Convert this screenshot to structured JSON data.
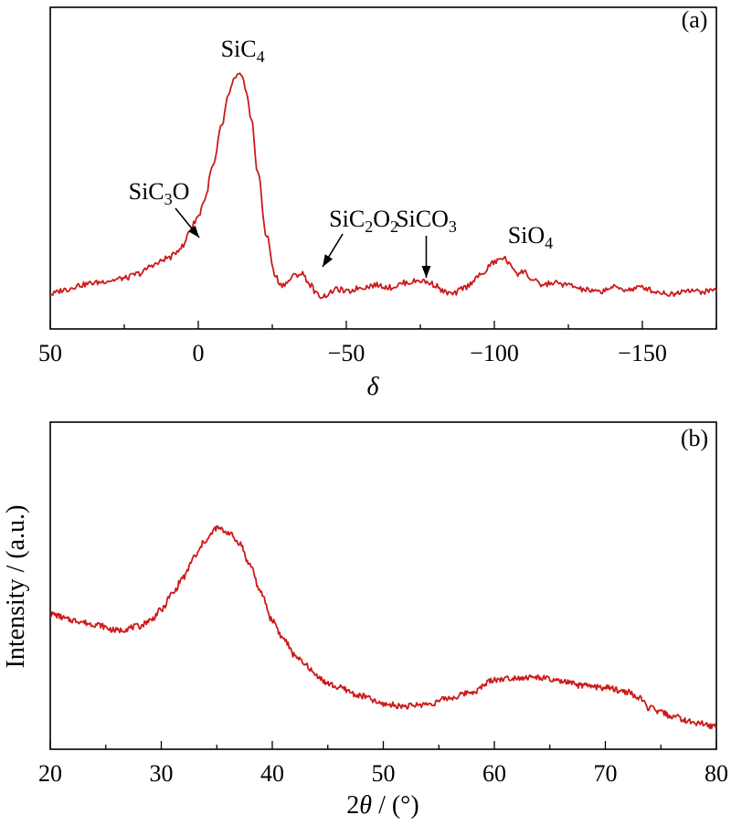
{
  "chart_data": [
    {
      "panel": "(a)",
      "type": "line",
      "xlabel": "δ",
      "ylabel": "",
      "xlim": [
        50,
        -175
      ],
      "x_ticks": [
        50,
        0,
        -50,
        -100,
        -150
      ],
      "x_tick_labels": [
        "50",
        "0",
        "−50",
        "−100",
        "−150"
      ],
      "grid": false,
      "series": [
        {
          "x": [
            50,
            45,
            40,
            35,
            30,
            25,
            20,
            15,
            10,
            5,
            3,
            0,
            -2,
            -5,
            -8,
            -10,
            -12,
            -14,
            -15,
            -16,
            -18,
            -20,
            -23,
            -26,
            -28,
            -30,
            -32,
            -35,
            -38,
            -40,
            -42,
            -44,
            -46,
            -48,
            -50,
            -55,
            -60,
            -65,
            -70,
            -75,
            -78,
            -80,
            -83,
            -86,
            -90,
            -95,
            -100,
            -103,
            -106,
            -108,
            -110,
            -113,
            -116,
            -120,
            -125,
            -130,
            -135,
            -140,
            -145,
            -150,
            -155,
            -160,
            -165,
            -170,
            -175
          ],
          "y": [
            0.04,
            0.06,
            0.08,
            0.09,
            0.1,
            0.11,
            0.13,
            0.17,
            0.2,
            0.25,
            0.32,
            0.38,
            0.45,
            0.6,
            0.78,
            0.9,
            0.98,
            1.0,
            0.98,
            0.94,
            0.8,
            0.58,
            0.3,
            0.12,
            0.08,
            0.09,
            0.12,
            0.13,
            0.08,
            0.04,
            0.03,
            0.04,
            0.06,
            0.06,
            0.05,
            0.07,
            0.08,
            0.07,
            0.09,
            0.1,
            0.09,
            0.08,
            0.05,
            0.04,
            0.07,
            0.12,
            0.18,
            0.2,
            0.16,
            0.13,
            0.14,
            0.1,
            0.08,
            0.09,
            0.08,
            0.06,
            0.05,
            0.07,
            0.06,
            0.07,
            0.05,
            0.04,
            0.06,
            0.05,
            0.06
          ]
        }
      ],
      "annotations": [
        {
          "id": "sic4",
          "text": "SiC",
          "sub": "4",
          "x": -15,
          "arrow": false
        },
        {
          "id": "sic3o",
          "text": "SiC",
          "sub": "3",
          "tail": "O",
          "x": 4,
          "arrow": true
        },
        {
          "id": "sic2o2",
          "text": "SiC",
          "sub": "2",
          "tail": "O",
          "sub2": "2",
          "x": -42,
          "arrow": true
        },
        {
          "id": "sico3",
          "text": "SiCO",
          "sub": "3",
          "x": -77,
          "arrow": true
        },
        {
          "id": "sio4",
          "text": "SiO",
          "sub": "4",
          "x": -106,
          "arrow": false
        }
      ]
    },
    {
      "panel": "(b)",
      "type": "line",
      "xlabel": "2θ / (°)",
      "xlabel_parts": [
        "2",
        "θ",
        " / (°)"
      ],
      "ylabel": "Intensity / (a.u.)",
      "xlim": [
        20,
        80
      ],
      "x_ticks": [
        20,
        30,
        40,
        50,
        60,
        70,
        80
      ],
      "x_tick_labels": [
        "20",
        "30",
        "40",
        "50",
        "60",
        "70",
        "80"
      ],
      "grid": false,
      "series": [
        {
          "x": [
            20,
            22,
            24,
            26,
            28,
            29,
            30,
            31,
            32,
            33,
            34,
            35,
            36,
            37,
            38,
            39,
            40,
            41,
            42,
            43,
            44,
            45,
            46,
            48,
            50,
            52,
            54,
            56,
            58,
            60,
            62,
            64,
            66,
            68,
            70,
            72,
            73,
            74,
            75,
            76,
            78,
            80
          ],
          "y": [
            0.58,
            0.55,
            0.53,
            0.5,
            0.52,
            0.55,
            0.6,
            0.68,
            0.76,
            0.86,
            0.94,
            1.0,
            0.98,
            0.93,
            0.82,
            0.68,
            0.55,
            0.46,
            0.38,
            0.33,
            0.28,
            0.24,
            0.22,
            0.18,
            0.14,
            0.13,
            0.14,
            0.17,
            0.2,
            0.26,
            0.27,
            0.27,
            0.25,
            0.23,
            0.22,
            0.2,
            0.17,
            0.12,
            0.1,
            0.08,
            0.05,
            0.03
          ]
        }
      ],
      "annotations": []
    }
  ]
}
